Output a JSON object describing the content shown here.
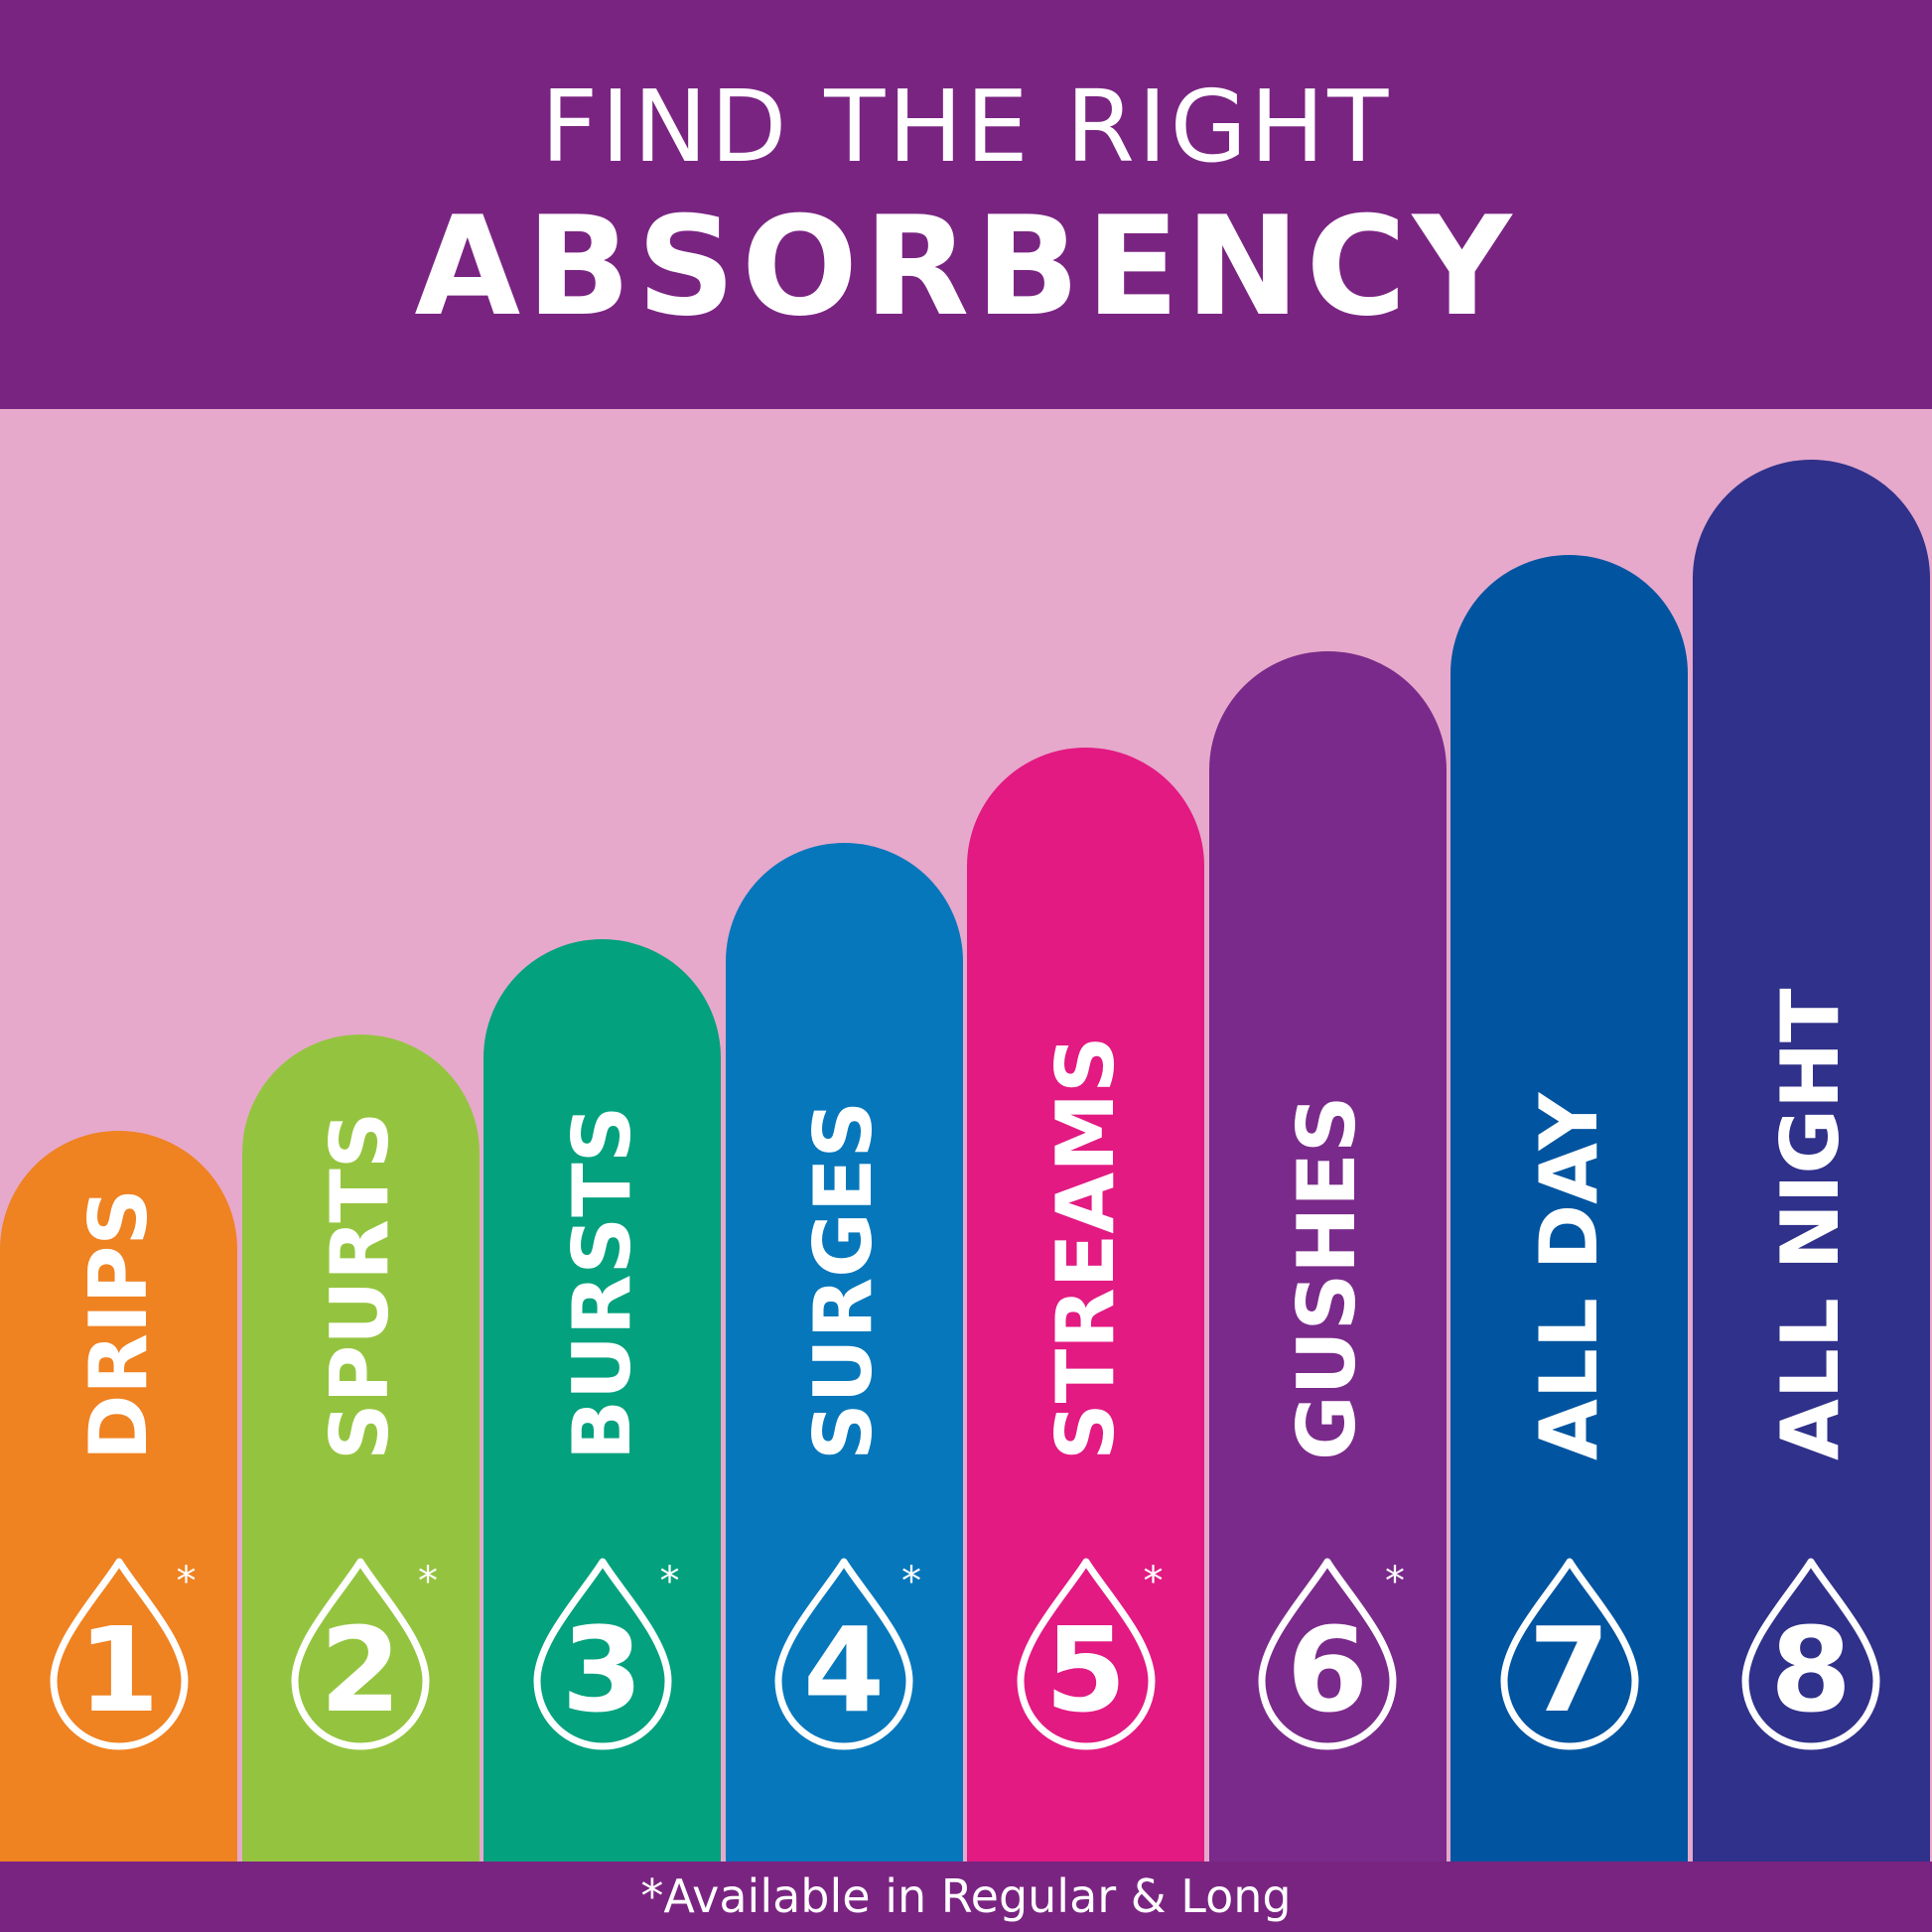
{
  "header": {
    "line1": "FIND THE RIGHT",
    "line2": "ABSORBENCY"
  },
  "footer": {
    "note": "*Available in Regular & Long"
  },
  "colors": {
    "header": "#7a2482",
    "background": "#e6a9cb"
  },
  "products": [
    {
      "label": "DRIPS",
      "number": "1",
      "asterisk": "*",
      "color": "#ef8221",
      "level": 1
    },
    {
      "label": "SPURTS",
      "number": "2",
      "asterisk": "*",
      "color": "#94c43f",
      "level": 2
    },
    {
      "label": "BURSTS",
      "number": "3",
      "asterisk": "*",
      "color": "#03a17e",
      "level": 3
    },
    {
      "label": "SURGES",
      "number": "4",
      "asterisk": "*",
      "color": "#0777bb",
      "level": 4
    },
    {
      "label": "STREAMS",
      "number": "5",
      "asterisk": "*",
      "color": "#e21a82",
      "level": 5
    },
    {
      "label": "GUSHES",
      "number": "6",
      "asterisk": "*",
      "color": "#7a2a8a",
      "level": 6
    },
    {
      "label": "ALL DAY",
      "number": "7",
      "asterisk": "",
      "color": "#0054a0",
      "level": 7
    },
    {
      "label": "ALL NIGHT",
      "number": "8",
      "asterisk": "",
      "color": "#30318a",
      "level": 8
    }
  ]
}
